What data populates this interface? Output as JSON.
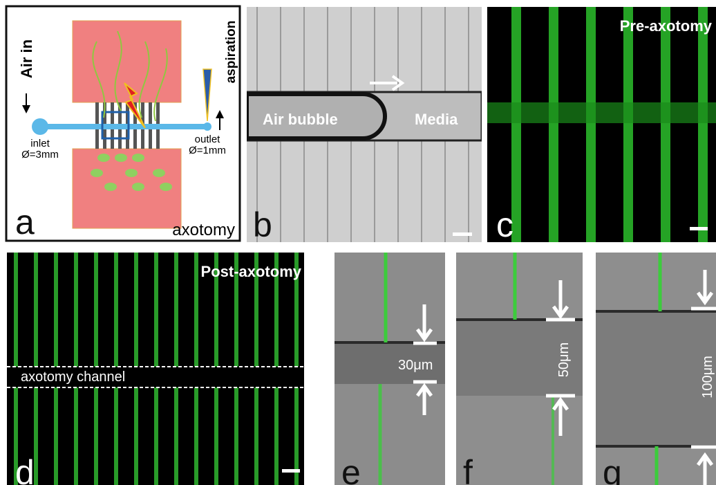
{
  "panels": {
    "a": {
      "label": "a",
      "air_in": "Air in",
      "aspiration": "aspiration",
      "inlet": "inlet",
      "inlet_size": "Ø=3mm",
      "outlet": "outlet",
      "outlet_size": "Ø=1mm",
      "caption": "axotomy"
    },
    "b": {
      "label": "b",
      "air_bubble": "Air bubble",
      "media": "Media"
    },
    "c": {
      "label": "c",
      "title": "Pre-axotomy"
    },
    "d": {
      "label": "d",
      "title": "Post-axotomy",
      "channel": "axotomy channel"
    },
    "e": {
      "label": "e",
      "width": "30μm"
    },
    "f": {
      "label": "f",
      "width": "50μm"
    },
    "g": {
      "label": "g",
      "width": "100μm"
    }
  }
}
